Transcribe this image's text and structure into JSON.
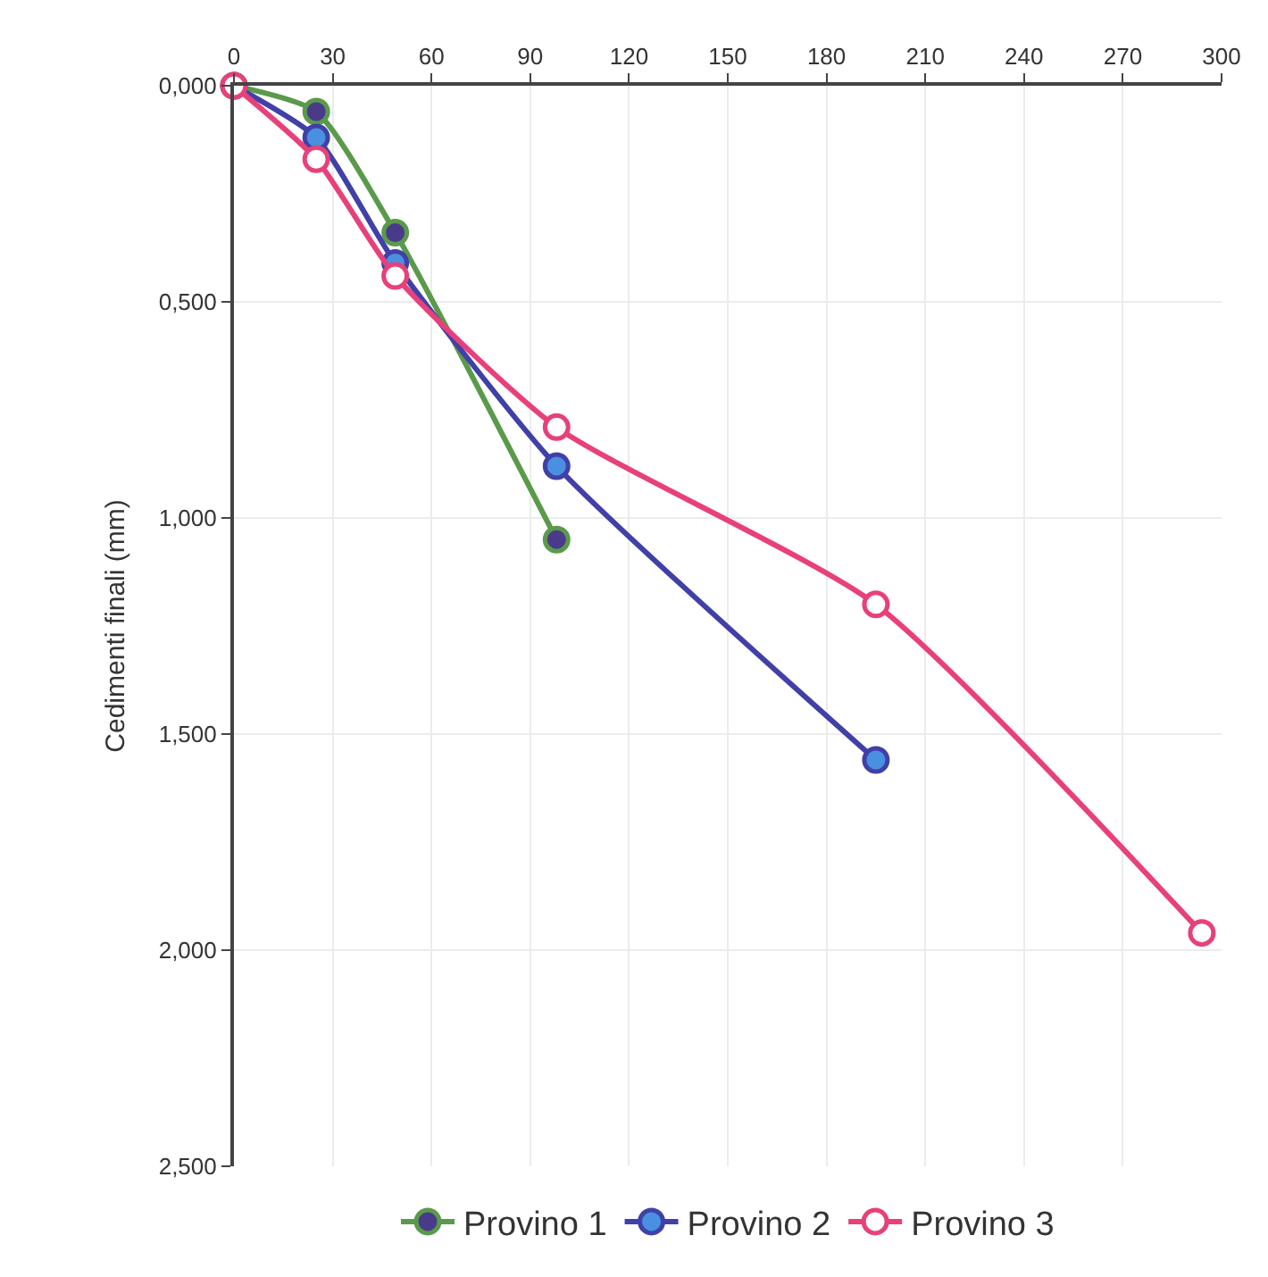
{
  "chart_data": {
    "type": "line",
    "ylabel": "Cedimenti finali (mm)",
    "xlim": [
      0,
      300
    ],
    "xticks": [
      0,
      30,
      60,
      90,
      120,
      150,
      180,
      210,
      240,
      270,
      300
    ],
    "ylim": [
      2.5,
      0
    ],
    "yticks": [
      {
        "value": 0,
        "label": "0,000"
      },
      {
        "value": 0.5,
        "label": "0,500"
      },
      {
        "value": 1,
        "label": "1,000"
      },
      {
        "value": 1.5,
        "label": "1,500"
      },
      {
        "value": 2,
        "label": "2,000"
      },
      {
        "value": 2.5,
        "label": "2,500"
      }
    ],
    "grid": true,
    "legend": "bottom",
    "marker": "circle",
    "series": [
      {
        "name": "Provino 1",
        "color": "#5a9a4a",
        "colors": [
          "#4a3a8a",
          "#4a3a8a",
          "#4a3a8a",
          "#4a3a8a"
        ],
        "x": [
          0,
          25,
          49,
          98
        ],
        "values": [
          0,
          0.06,
          0.34,
          1.05
        ]
      },
      {
        "name": "Provino 2",
        "color": "#4040a8",
        "colors": [
          "#4a90e0",
          "#4a90e0",
          "#4a90e0",
          "#4a90e0",
          "#4a90e0"
        ],
        "x": [
          0,
          25,
          49,
          98,
          195
        ],
        "values": [
          0,
          0.12,
          0.41,
          0.88,
          1.56
        ]
      },
      {
        "name": "Provino 3",
        "color": "#e8407a",
        "colors": [
          "#ffffff",
          "#ffffff",
          "#ffffff",
          "#ffffff",
          "#ffffff",
          "#ffffff"
        ],
        "x": [
          0,
          25,
          49,
          98,
          195,
          294
        ],
        "values": [
          0,
          0.17,
          0.44,
          0.79,
          1.2,
          1.96
        ]
      }
    ]
  }
}
